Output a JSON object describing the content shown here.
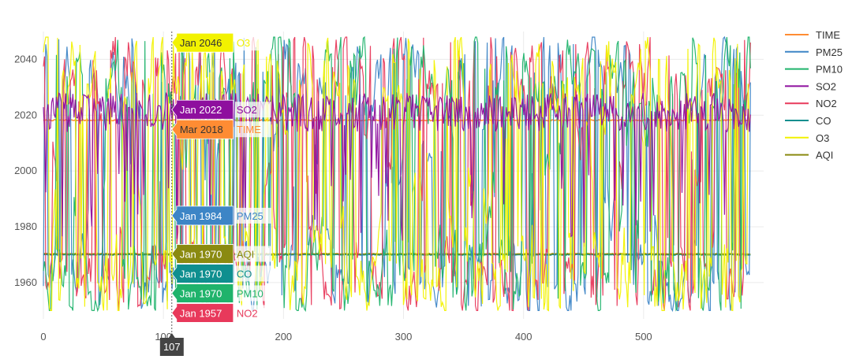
{
  "chart_data": {
    "type": "line",
    "title": "",
    "xlabel": "",
    "ylabel": "",
    "xlim": [
      0,
      600
    ],
    "ylim": [
      1947,
      2050
    ],
    "x_ticks": [
      0,
      100,
      200,
      300,
      400,
      500
    ],
    "y_ticks": [
      1960,
      1980,
      2000,
      2020,
      2040
    ],
    "grid": true,
    "legend_position": "right",
    "n_points": 600,
    "series": [
      {
        "name": "TIME",
        "color": "#ff8c33",
        "style": "flat",
        "level": 2018.2,
        "noise": 0.4
      },
      {
        "name": "PM25",
        "color": "#3d85c6",
        "style": "wild",
        "low": 1950,
        "high": 2048,
        "seed": 11
      },
      {
        "name": "PM10",
        "color": "#1fb36b",
        "style": "wild",
        "low": 1950,
        "high": 2048,
        "seed": 23
      },
      {
        "name": "SO2",
        "color": "#8e0f9e",
        "style": "band",
        "center": 2021,
        "spread": 7,
        "seed": 37
      },
      {
        "name": "NO2",
        "color": "#e8395b",
        "style": "wild",
        "low": 1950,
        "high": 2048,
        "seed": 41
      },
      {
        "name": "CO",
        "color": "#0f8f8f",
        "style": "flat",
        "level": 1970,
        "noise": 0.3
      },
      {
        "name": "O3",
        "color": "#f2f200",
        "style": "wild",
        "low": 1950,
        "high": 2048,
        "seed": 59
      },
      {
        "name": "AQI",
        "color": "#8a8a10",
        "style": "flat",
        "level": 1970.3,
        "noise": 0.3
      }
    ],
    "hover": {
      "x_label": "107",
      "x": 107,
      "items": [
        {
          "date": "Jan 2046",
          "name": "O3",
          "y": 2046,
          "bg": "#f2f200",
          "fg": "#333333"
        },
        {
          "date": "Jan 2022",
          "name": "SO2",
          "y": 2022,
          "bg": "#8e0f9e",
          "fg": "#ffffff"
        },
        {
          "date": "Mar 2018",
          "name": "TIME",
          "y": 2018.2,
          "bg": "#ff8c33",
          "fg": "#333333"
        },
        {
          "date": "Jan 1984",
          "name": "PM25",
          "y": 1984,
          "bg": "#3d85c6",
          "fg": "#ffffff"
        },
        {
          "date": "Jan 1970",
          "name": "AQI",
          "y": 1970.3,
          "bg": "#8a8a10",
          "fg": "#ffffff"
        },
        {
          "date": "Jan 1970",
          "name": "CO",
          "y": 1970,
          "bg": "#0f8f8f",
          "fg": "#ffffff"
        },
        {
          "date": "Jan 1970",
          "name": "PM10",
          "y": 1970,
          "bg": "#1fb36b",
          "fg": "#ffffff"
        },
        {
          "date": "Jan 1957",
          "name": "NO2",
          "y": 1957,
          "bg": "#e8395b",
          "fg": "#ffffff"
        }
      ]
    }
  }
}
